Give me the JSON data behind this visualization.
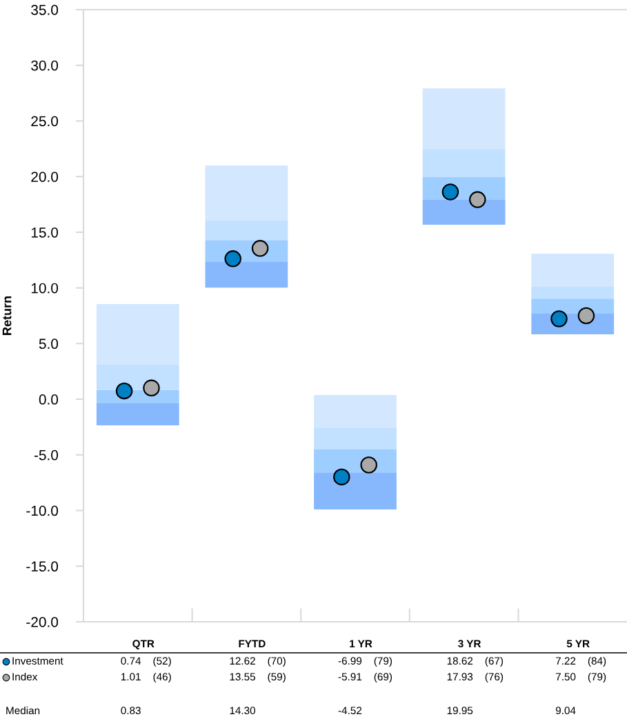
{
  "chart_data": {
    "type": "bar",
    "ylabel": "Return",
    "categories": [
      "QTR",
      "FYTD",
      "1 YR",
      "3 YR",
      "5 YR"
    ],
    "ylim": [
      -20,
      35
    ],
    "yticks": [
      {
        "value": -20,
        "label": "-20.0"
      },
      {
        "value": -15,
        "label": "-15.0"
      },
      {
        "value": -10,
        "label": "-10.0"
      },
      {
        "value": -5,
        "label": "-5.0"
      },
      {
        "value": 0,
        "label": "0.0"
      },
      {
        "value": 5,
        "label": "5.0"
      },
      {
        "value": 10,
        "label": "10.0"
      },
      {
        "value": 15,
        "label": "15.0"
      },
      {
        "value": 20,
        "label": "20.0"
      },
      {
        "value": 25,
        "label": "25.0"
      },
      {
        "value": 30,
        "label": "30.0"
      },
      {
        "value": 35,
        "label": "35.0"
      }
    ],
    "grid": false,
    "legend": "bottom left",
    "series": [
      {
        "color": "#87b8fd",
        "base": [
          -2.35,
          10.03,
          -9.9,
          15.67,
          5.82
        ],
        "values": [
          1.98,
          2.3,
          3.33,
          2.23,
          1.86
        ]
      },
      {
        "color": "#9ecdff",
        "base": [
          -0.37,
          12.33,
          -6.57,
          17.9,
          7.68
        ],
        "values": [
          1.2,
          1.97,
          2.05,
          2.05,
          1.36
        ]
      },
      {
        "color": "#c2e0ff",
        "base": [
          0.83,
          14.3,
          -4.52,
          19.95,
          9.04
        ],
        "values": [
          2.27,
          1.74,
          1.92,
          2.53,
          1.06
        ]
      },
      {
        "color": "#d3e8fe",
        "base": [
          3.1,
          16.04,
          -2.6,
          22.48,
          10.1
        ],
        "values": [
          5.45,
          4.96,
          2.97,
          5.45,
          2.97
        ]
      },
      {
        "name": "Investment",
        "type": "scatter",
        "marker": "circle",
        "color": "#0080c4",
        "x": [
          "QTR",
          "FYTD",
          "1 YR",
          "3 YR",
          "5 YR"
        ],
        "values": [
          0.74,
          12.62,
          -6.99,
          18.62,
          7.22
        ],
        "value_labels": [
          "0.74    (52)",
          "12.62    (70)",
          "-6.99    (79)",
          "18.62    (67)",
          "7.22    (84)"
        ]
      },
      {
        "name": "Index",
        "type": "scatter",
        "marker": "circle",
        "color": "#a9a9a9",
        "x": [
          "QTR",
          "FYTD",
          "1 YR",
          "3 YR",
          "5 YR"
        ],
        "values": [
          1.01,
          13.55,
          -5.91,
          17.93,
          7.5
        ],
        "value_labels": [
          "1.01    (46)",
          "13.55    (59)",
          "-5.91    (69)",
          "17.93    (76)",
          "7.50    (79)"
        ]
      }
    ],
    "annotations": [
      "Median",
      "0.83",
      "14.30",
      "-4.52",
      "19.95",
      "9.04"
    ]
  }
}
